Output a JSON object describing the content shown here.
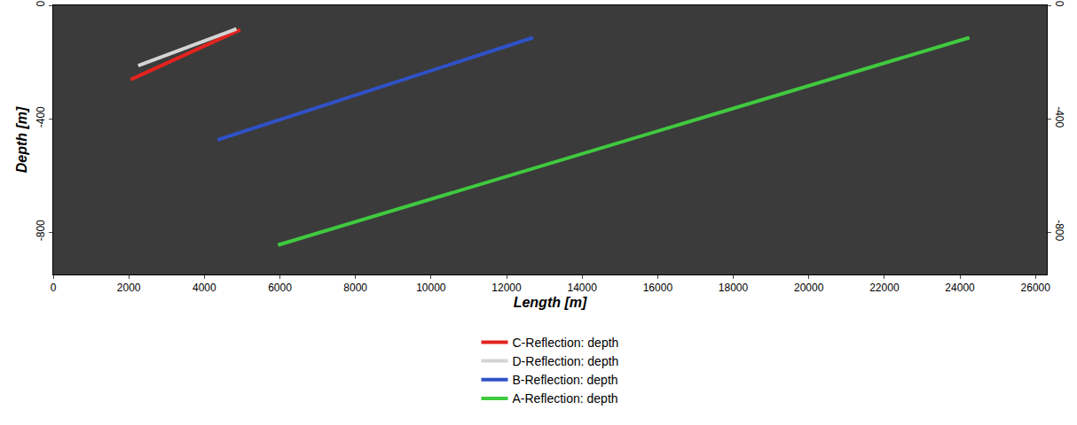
{
  "chart_data": {
    "type": "line",
    "x_label": "Length [m]",
    "y_label": "Depth [m]",
    "xlim": [
      0,
      26300
    ],
    "xticks": [
      0,
      2000,
      4000,
      6000,
      8000,
      10000,
      12000,
      14000,
      16000,
      18000,
      20000,
      22000,
      24000,
      26000
    ],
    "ylim": [
      -950,
      0
    ],
    "yticks": [
      0,
      -400,
      -800
    ],
    "y2lim": [
      -950,
      0
    ],
    "y2ticks": [
      0,
      -400,
      -800
    ],
    "grid": false,
    "legend": "bottom",
    "series": [
      {
        "name": "C-Reflection: depth",
        "color": "#e3231f",
        "x": [
          2050,
          4950
        ],
        "values": [
          -262,
          -86
        ]
      },
      {
        "name": "D-Reflection: depth",
        "color": "#d4d4d4",
        "x": [
          2250,
          4850
        ],
        "values": [
          -213,
          -83
        ]
      },
      {
        "name": "B-Reflection: depth",
        "color": "#2f52c8",
        "x": [
          4350,
          12700
        ],
        "values": [
          -475,
          -114
        ]
      },
      {
        "name": "A-Reflection: depth",
        "color": "#3fca3f",
        "x": [
          5950,
          24250
        ],
        "values": [
          -846,
          -114
        ]
      }
    ]
  }
}
